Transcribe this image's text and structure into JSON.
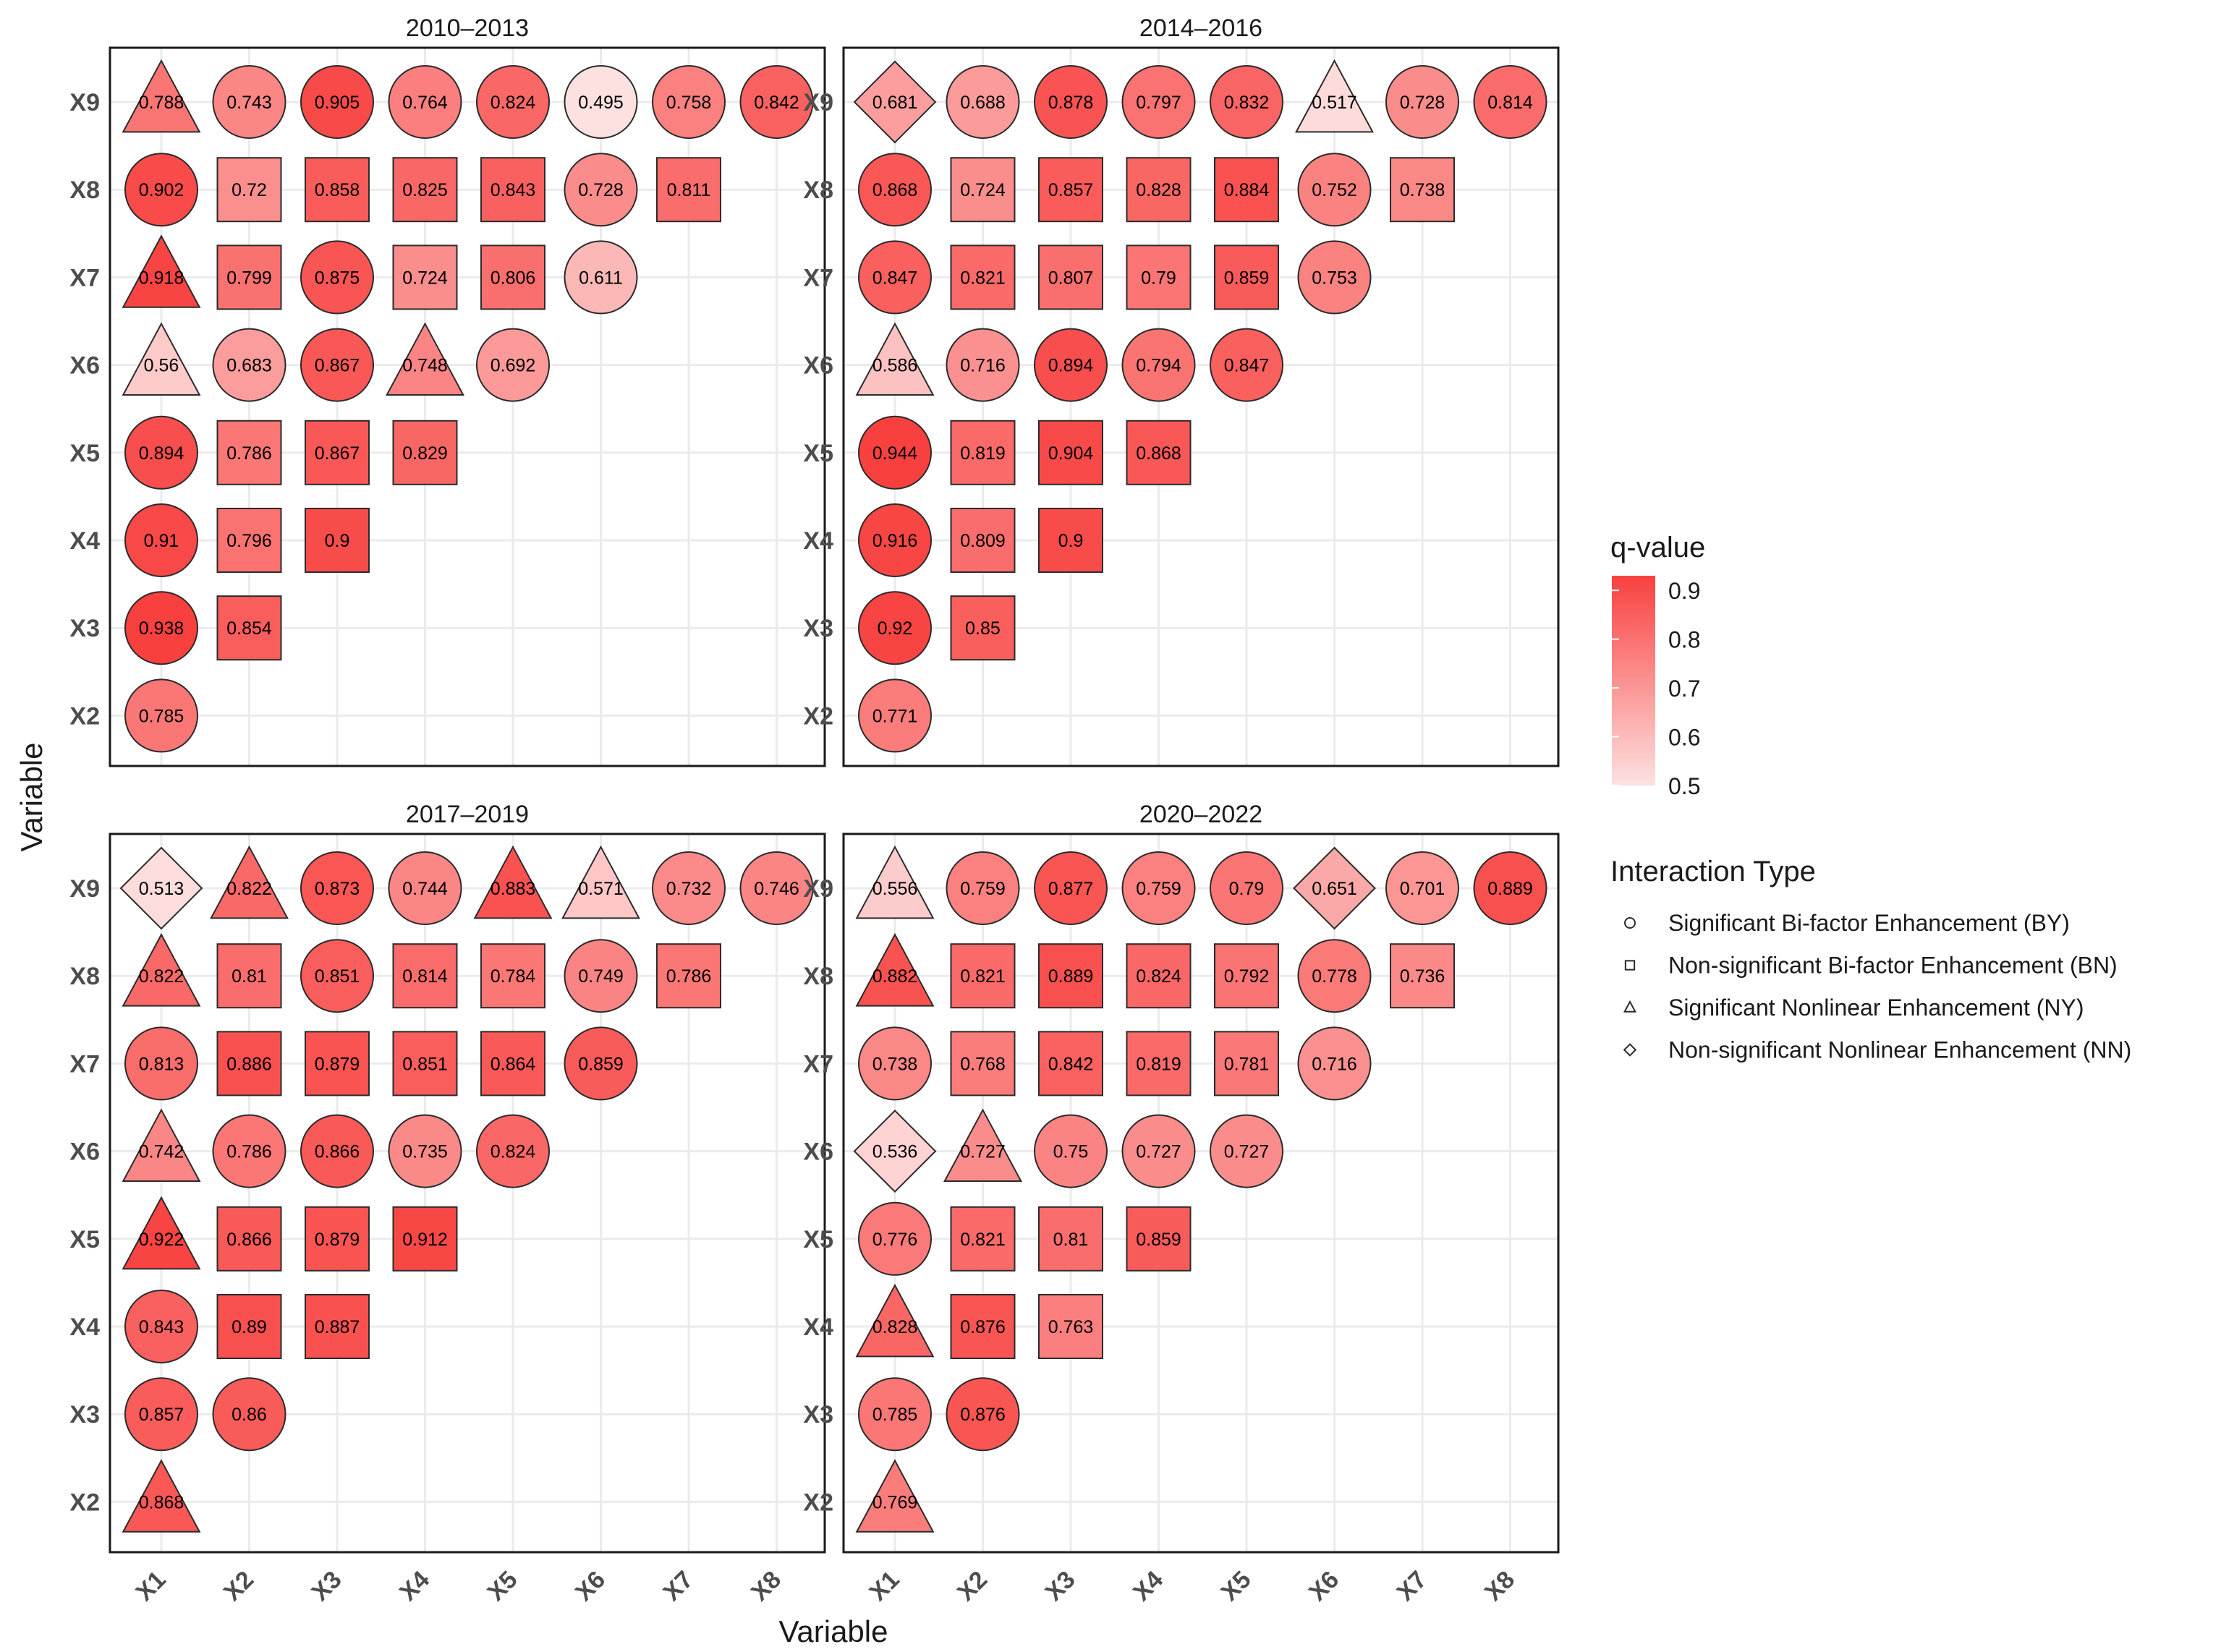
{
  "chart_data": {
    "type": "heatmap",
    "shared": {
      "xlabel": "Variable",
      "ylabel": "Variable",
      "x_categories": [
        "X1",
        "X2",
        "X3",
        "X4",
        "X5",
        "X6",
        "X7",
        "X8"
      ],
      "y_categories": [
        "X2",
        "X3",
        "X4",
        "X5",
        "X6",
        "X7",
        "X8",
        "X9"
      ],
      "color_scale": {
        "title": "q-value",
        "min": 0.5,
        "max": 0.93,
        "low_color": "#fde1e1",
        "high_color": "#f8413f",
        "ticks": [
          "0.9",
          "0.8",
          "0.7",
          "0.6",
          "0.5"
        ]
      },
      "shape_legend": {
        "title": "Interaction Type",
        "items": [
          {
            "shape": "circle",
            "label": "Significant Bi-factor Enhancement (BY)"
          },
          {
            "shape": "square",
            "label": "Non-significant Bi-factor Enhancement (BN)"
          },
          {
            "shape": "triangle",
            "label": "Significant Nonlinear Enhancement (NY)"
          },
          {
            "shape": "diamond",
            "label": "Non-significant Nonlinear Enhancement (NN)"
          }
        ]
      }
    },
    "panels": [
      {
        "title": "2010–2013",
        "rows": {
          "X9": [
            [
              "0.788",
              "NY"
            ],
            [
              "0.743",
              "BY"
            ],
            [
              "0.905",
              "BY"
            ],
            [
              "0.764",
              "BY"
            ],
            [
              "0.824",
              "BY"
            ],
            [
              "0.495",
              "BY"
            ],
            [
              "0.758",
              "BY"
            ],
            [
              "0.842",
              "BY"
            ]
          ],
          "X8": [
            [
              "0.902",
              "BY"
            ],
            [
              "0.72",
              "BN"
            ],
            [
              "0.858",
              "BN"
            ],
            [
              "0.825",
              "BN"
            ],
            [
              "0.843",
              "BN"
            ],
            [
              "0.728",
              "BY"
            ],
            [
              "0.811",
              "BN"
            ]
          ],
          "X7": [
            [
              "0.918",
              "NY"
            ],
            [
              "0.799",
              "BN"
            ],
            [
              "0.875",
              "BY"
            ],
            [
              "0.724",
              "BN"
            ],
            [
              "0.806",
              "BN"
            ],
            [
              "0.611",
              "BY"
            ]
          ],
          "X6": [
            [
              "0.56",
              "NY"
            ],
            [
              "0.683",
              "BY"
            ],
            [
              "0.867",
              "BY"
            ],
            [
              "0.748",
              "NY"
            ],
            [
              "0.692",
              "BY"
            ]
          ],
          "X5": [
            [
              "0.894",
              "BY"
            ],
            [
              "0.786",
              "BN"
            ],
            [
              "0.867",
              "BN"
            ],
            [
              "0.829",
              "BN"
            ]
          ],
          "X4": [
            [
              "0.91",
              "BY"
            ],
            [
              "0.796",
              "BN"
            ],
            [
              "0.9",
              "BN"
            ]
          ],
          "X3": [
            [
              "0.938",
              "BY"
            ],
            [
              "0.854",
              "BN"
            ]
          ],
          "X2": [
            [
              "0.785",
              "BY"
            ]
          ]
        }
      },
      {
        "title": "2014–2016",
        "rows": {
          "X9": [
            [
              "0.681",
              "NN"
            ],
            [
              "0.688",
              "BY"
            ],
            [
              "0.878",
              "BY"
            ],
            [
              "0.797",
              "BY"
            ],
            [
              "0.832",
              "BY"
            ],
            [
              "0.517",
              "NY"
            ],
            [
              "0.728",
              "BY"
            ],
            [
              "0.814",
              "BY"
            ]
          ],
          "X8": [
            [
              "0.868",
              "BY"
            ],
            [
              "0.724",
              "BN"
            ],
            [
              "0.857",
              "BN"
            ],
            [
              "0.828",
              "BN"
            ],
            [
              "0.884",
              "BN"
            ],
            [
              "0.752",
              "BY"
            ],
            [
              "0.738",
              "BN"
            ]
          ],
          "X7": [
            [
              "0.847",
              "BY"
            ],
            [
              "0.821",
              "BN"
            ],
            [
              "0.807",
              "BN"
            ],
            [
              "0.79",
              "BN"
            ],
            [
              "0.859",
              "BN"
            ],
            [
              "0.753",
              "BY"
            ]
          ],
          "X6": [
            [
              "0.586",
              "NY"
            ],
            [
              "0.716",
              "BY"
            ],
            [
              "0.894",
              "BY"
            ],
            [
              "0.794",
              "BY"
            ],
            [
              "0.847",
              "BY"
            ]
          ],
          "X5": [
            [
              "0.944",
              "BY"
            ],
            [
              "0.819",
              "BN"
            ],
            [
              "0.904",
              "BN"
            ],
            [
              "0.868",
              "BN"
            ]
          ],
          "X4": [
            [
              "0.916",
              "BY"
            ],
            [
              "0.809",
              "BN"
            ],
            [
              "0.9",
              "BN"
            ]
          ],
          "X3": [
            [
              "0.92",
              "BY"
            ],
            [
              "0.85",
              "BN"
            ]
          ],
          "X2": [
            [
              "0.771",
              "BY"
            ]
          ]
        }
      },
      {
        "title": "2017–2019",
        "rows": {
          "X9": [
            [
              "0.513",
              "NN"
            ],
            [
              "0.822",
              "NY"
            ],
            [
              "0.873",
              "BY"
            ],
            [
              "0.744",
              "BY"
            ],
            [
              "0.883",
              "NY"
            ],
            [
              "0.571",
              "NY"
            ],
            [
              "0.732",
              "BY"
            ],
            [
              "0.746",
              "BY"
            ]
          ],
          "X8": [
            [
              "0.822",
              "NY"
            ],
            [
              "0.81",
              "BN"
            ],
            [
              "0.851",
              "BY"
            ],
            [
              "0.814",
              "BN"
            ],
            [
              "0.784",
              "BN"
            ],
            [
              "0.749",
              "BY"
            ],
            [
              "0.786",
              "BN"
            ]
          ],
          "X7": [
            [
              "0.813",
              "BY"
            ],
            [
              "0.886",
              "BN"
            ],
            [
              "0.879",
              "BN"
            ],
            [
              "0.851",
              "BN"
            ],
            [
              "0.864",
              "BN"
            ],
            [
              "0.859",
              "BY"
            ]
          ],
          "X6": [
            [
              "0.742",
              "NY"
            ],
            [
              "0.786",
              "BY"
            ],
            [
              "0.866",
              "BY"
            ],
            [
              "0.735",
              "BY"
            ],
            [
              "0.824",
              "BY"
            ]
          ],
          "X5": [
            [
              "0.922",
              "NY"
            ],
            [
              "0.866",
              "BN"
            ],
            [
              "0.879",
              "BN"
            ],
            [
              "0.912",
              "BN"
            ]
          ],
          "X4": [
            [
              "0.843",
              "BY"
            ],
            [
              "0.89",
              "BN"
            ],
            [
              "0.887",
              "BN"
            ]
          ],
          "X3": [
            [
              "0.857",
              "BY"
            ],
            [
              "0.86",
              "BY"
            ]
          ],
          "X2": [
            [
              "0.868",
              "NY"
            ]
          ]
        }
      },
      {
        "title": "2020–2022",
        "rows": {
          "X9": [
            [
              "0.556",
              "NY"
            ],
            [
              "0.759",
              "BY"
            ],
            [
              "0.877",
              "BY"
            ],
            [
              "0.759",
              "BY"
            ],
            [
              "0.79",
              "BY"
            ],
            [
              "0.651",
              "NN"
            ],
            [
              "0.701",
              "BY"
            ],
            [
              "0.889",
              "BY"
            ]
          ],
          "X8": [
            [
              "0.882",
              "NY"
            ],
            [
              "0.821",
              "BN"
            ],
            [
              "0.889",
              "BN"
            ],
            [
              "0.824",
              "BN"
            ],
            [
              "0.792",
              "BN"
            ],
            [
              "0.778",
              "BY"
            ],
            [
              "0.736",
              "BN"
            ]
          ],
          "X7": [
            [
              "0.738",
              "BY"
            ],
            [
              "0.768",
              "BN"
            ],
            [
              "0.842",
              "BN"
            ],
            [
              "0.819",
              "BN"
            ],
            [
              "0.781",
              "BN"
            ],
            [
              "0.716",
              "BY"
            ]
          ],
          "X6": [
            [
              "0.536",
              "NN"
            ],
            [
              "0.727",
              "NY"
            ],
            [
              "0.75",
              "BY"
            ],
            [
              "0.727",
              "BY"
            ],
            [
              "0.727",
              "BY"
            ]
          ],
          "X5": [
            [
              "0.776",
              "BY"
            ],
            [
              "0.821",
              "BN"
            ],
            [
              "0.81",
              "BN"
            ],
            [
              "0.859",
              "BN"
            ]
          ],
          "X4": [
            [
              "0.828",
              "NY"
            ],
            [
              "0.876",
              "BN"
            ],
            [
              "0.763",
              "BN"
            ]
          ],
          "X3": [
            [
              "0.785",
              "BY"
            ],
            [
              "0.876",
              "BY"
            ]
          ],
          "X2": [
            [
              "0.769",
              "NY"
            ]
          ]
        }
      }
    ]
  }
}
